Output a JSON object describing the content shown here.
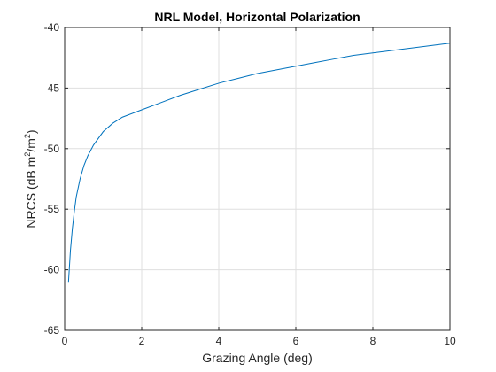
{
  "chart_data": {
    "type": "line",
    "title": "NRL Model, Horizontal Polarization",
    "xlabel": "Grazing Angle (deg)",
    "ylabel": {
      "prefix": "NRCS  (dB  m",
      "sup1": "2",
      "mid": "/m",
      "sup2": "2",
      "suffix": ")"
    },
    "xlim": [
      0,
      10
    ],
    "ylim": [
      -65,
      -40
    ],
    "xticks": [
      0,
      2,
      4,
      6,
      8,
      10
    ],
    "yticks": [
      -65,
      -60,
      -55,
      -50,
      -45,
      -40
    ],
    "xtick_labels": [
      "0",
      "2",
      "4",
      "6",
      "8",
      "10"
    ],
    "ytick_labels": [
      "-65",
      "-60",
      "-55",
      "-50",
      "-45",
      "-40"
    ],
    "grid": true,
    "line_color": "#0072bd",
    "series": [
      {
        "x": [
          0.1,
          0.15,
          0.2,
          0.25,
          0.3,
          0.4,
          0.5,
          0.6,
          0.75,
          1.0,
          1.25,
          1.5,
          2.0,
          2.5,
          3.0,
          3.5,
          4.0,
          4.5,
          5.0,
          5.5,
          6.0,
          6.5,
          7.0,
          7.5,
          8.0,
          8.5,
          9.0,
          9.5,
          10.0
        ],
        "y": [
          -61.0,
          -58.4,
          -56.6,
          -55.2,
          -54.0,
          -52.5,
          -51.4,
          -50.6,
          -49.7,
          -48.6,
          -47.9,
          -47.4,
          -46.8,
          -46.2,
          -45.6,
          -45.1,
          -44.6,
          -44.2,
          -43.8,
          -43.5,
          -43.2,
          -42.9,
          -42.6,
          -42.3,
          -42.1,
          -41.9,
          -41.7,
          -41.5,
          -41.3
        ]
      }
    ]
  }
}
